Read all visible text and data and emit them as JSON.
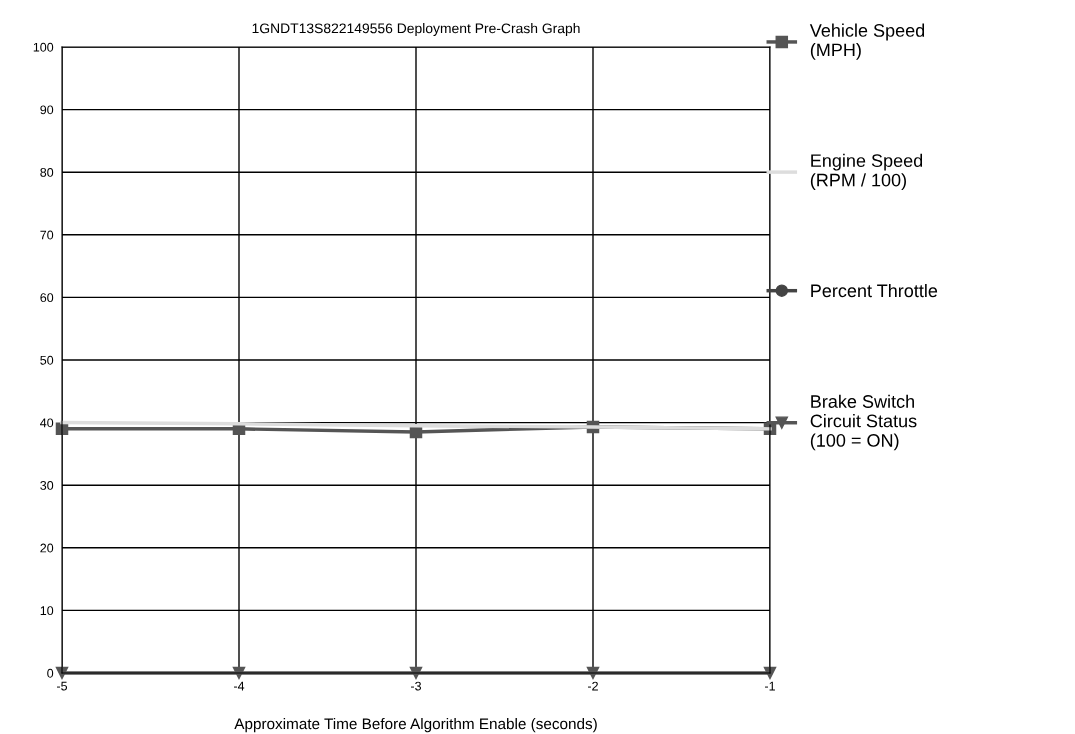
{
  "chart_data": {
    "type": "line",
    "title": "1GNDT13S822149556 Deployment Pre-Crash Graph",
    "xlabel": "Approximate Time Before Algorithm Enable (seconds)",
    "x": [
      -5,
      -4,
      -3,
      -2,
      -1
    ],
    "series": [
      {
        "name": "Vehicle Speed\n(MPH)",
        "color": "#555555",
        "marker": "square",
        "values": [
          39,
          39,
          38.5,
          39.3,
          39
        ]
      },
      {
        "name": "Engine Speed\n(RPM / 100)",
        "color": "#dddddd",
        "marker": "none",
        "values": [
          40,
          39.8,
          39.5,
          39.3,
          39
        ]
      },
      {
        "name": "Percent Throttle",
        "color": "#444444",
        "marker": "circle",
        "values": [
          null,
          null,
          null,
          null,
          null
        ]
      },
      {
        "name": "Brake Switch\nCircuit Status\n(100 = ON)",
        "color": "#555555",
        "marker": "triangle",
        "values": [
          0,
          0,
          0,
          0,
          0
        ]
      }
    ],
    "xlim": [
      -5,
      -1
    ],
    "xticks": [
      -5,
      -4,
      -3,
      -2,
      -1
    ],
    "ylim": [
      0,
      100
    ],
    "yticks": [
      0,
      10,
      20,
      30,
      40,
      50,
      60,
      70,
      80,
      90,
      100
    ],
    "grid": true,
    "legend": "right",
    "line_style": "solid"
  }
}
